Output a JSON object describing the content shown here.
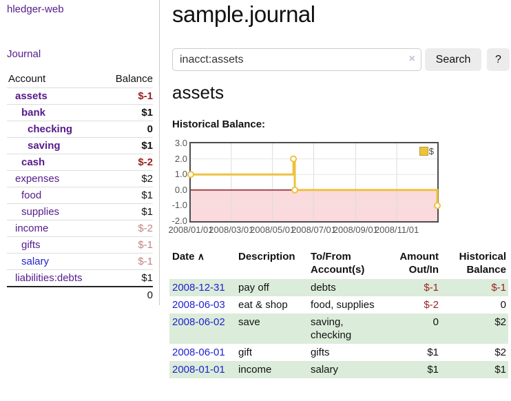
{
  "colors": {
    "link_purple": "#551a8b",
    "link_blue": "#2222cc",
    "negative_strong": "#9a1f1f",
    "negative_muted": "#c08383",
    "row_shade_green": "#dbecda",
    "series_yellow": "#edc240",
    "zero_line_red": "#8b1a1a",
    "negative_region_pink": "#fadadd"
  },
  "sidebar": {
    "brand": "hledger-web",
    "nav": {
      "journal": "Journal"
    },
    "accounts_header": {
      "account": "Account",
      "balance": "Balance"
    },
    "accounts": [
      {
        "name": "assets",
        "balance": "$-1",
        "indent": 1,
        "bold": true,
        "balance_tone": "neg-strong",
        "link_tone": "purple"
      },
      {
        "name": "bank",
        "balance": "$1",
        "indent": 2,
        "bold": true,
        "balance_tone": "normal",
        "link_tone": "purple"
      },
      {
        "name": "checking",
        "balance": "0",
        "indent": 3,
        "bold": true,
        "balance_tone": "normal",
        "link_tone": "purple"
      },
      {
        "name": "saving",
        "balance": "$1",
        "indent": 3,
        "bold": true,
        "balance_tone": "normal",
        "link_tone": "purple"
      },
      {
        "name": "cash",
        "balance": "$-2",
        "indent": 2,
        "bold": true,
        "balance_tone": "neg-strong",
        "link_tone": "purple"
      },
      {
        "name": "expenses",
        "balance": "$2",
        "indent": 1,
        "bold": false,
        "balance_tone": "normal",
        "link_tone": "purple"
      },
      {
        "name": "food",
        "balance": "$1",
        "indent": 2,
        "bold": false,
        "balance_tone": "normal",
        "link_tone": "purple"
      },
      {
        "name": "supplies",
        "balance": "$1",
        "indent": 2,
        "bold": false,
        "balance_tone": "normal",
        "link_tone": "purple"
      },
      {
        "name": "income",
        "balance": "$-2",
        "indent": 1,
        "bold": false,
        "balance_tone": "neg-muted",
        "link_tone": "purple"
      },
      {
        "name": "gifts",
        "balance": "$-1",
        "indent": 2,
        "bold": false,
        "balance_tone": "neg-muted",
        "link_tone": "purple"
      },
      {
        "name": "salary",
        "balance": "$-1",
        "indent": 2,
        "bold": false,
        "balance_tone": "neg-muted",
        "link_tone": "blue"
      },
      {
        "name": "liabilities:debts",
        "balance": "$1",
        "indent": 1,
        "bold": false,
        "balance_tone": "normal",
        "link_tone": "purple"
      }
    ],
    "total": "0"
  },
  "header": {
    "title": "sample.journal"
  },
  "search": {
    "value": "inacct:assets",
    "clear_icon": "×",
    "button_label": "Search",
    "help_label": "?"
  },
  "account_page": {
    "title": "assets",
    "chart_label": "Historical Balance:"
  },
  "chart_data": {
    "type": "line",
    "title": "Historical Balance",
    "step": true,
    "series": [
      {
        "name": "$",
        "color": "#edc240",
        "points": [
          [
            "2008-01-01",
            1
          ],
          [
            "2008-06-01",
            2
          ],
          [
            "2008-06-03",
            0
          ],
          [
            "2008-12-31",
            -1
          ]
        ]
      }
    ],
    "xlim": [
      "2008-01-01",
      "2008-12-31"
    ],
    "ylim": [
      -2,
      3
    ],
    "yticks": [
      "3.0",
      "2.0",
      "1.0",
      "0.0",
      "-1.0",
      "-2.0"
    ],
    "xticks": [
      "2008/01/01",
      "2008/03/01",
      "2008/05/01",
      "2008/07/01",
      "2008/09/01",
      "2008/11/01"
    ],
    "legend": {
      "label": "$",
      "position": "top-right"
    },
    "grid": true,
    "negative_region": true
  },
  "register": {
    "columns": [
      {
        "label": "Date",
        "align": "left"
      },
      {
        "label": "Description",
        "align": "left"
      },
      {
        "label": "To/From Account(s)",
        "align": "left"
      },
      {
        "label": "Amount Out/In",
        "align": "right"
      },
      {
        "label": "Historical Balance",
        "align": "right"
      }
    ],
    "sort_icon": "∧",
    "rows": [
      {
        "date": "2008-12-31",
        "description": "pay off",
        "accounts": "debts",
        "amount": "$-1",
        "balance": "$-1",
        "amount_negative": true,
        "balance_negative": true,
        "shaded": true
      },
      {
        "date": "2008-06-03",
        "description": "eat & shop",
        "accounts": "food, supplies",
        "amount": "$-2",
        "balance": "0",
        "amount_negative": true,
        "balance_negative": false,
        "shaded": false
      },
      {
        "date": "2008-06-02",
        "description": "save",
        "accounts": "saving, checking",
        "amount": "0",
        "balance": "$2",
        "amount_negative": false,
        "balance_negative": false,
        "shaded": true
      },
      {
        "date": "2008-06-01",
        "description": "gift",
        "accounts": "gifts",
        "amount": "$1",
        "balance": "$2",
        "amount_negative": false,
        "balance_negative": false,
        "shaded": false
      },
      {
        "date": "2008-01-01",
        "description": "income",
        "accounts": "salary",
        "amount": "$1",
        "balance": "$1",
        "amount_negative": false,
        "balance_negative": false,
        "shaded": true
      }
    ]
  }
}
